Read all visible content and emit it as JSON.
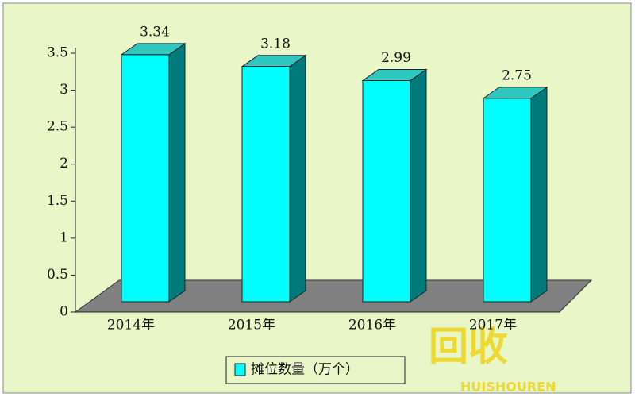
{
  "chart_data": {
    "type": "bar3d",
    "categories": [
      "2014年",
      "2015年",
      "2016年",
      "2017年"
    ],
    "series": [
      {
        "name": "摊位数量（万个）",
        "color": "#00ffff",
        "values": [
          3.34,
          3.18,
          2.99,
          2.75
        ]
      }
    ],
    "ylim": [
      0,
      3.5
    ],
    "yticks": [
      0,
      0.5,
      1,
      1.5,
      2,
      2.5,
      3,
      3.5
    ],
    "watermark": {
      "logo": "回收",
      "text": "HUISHOUREN"
    }
  }
}
